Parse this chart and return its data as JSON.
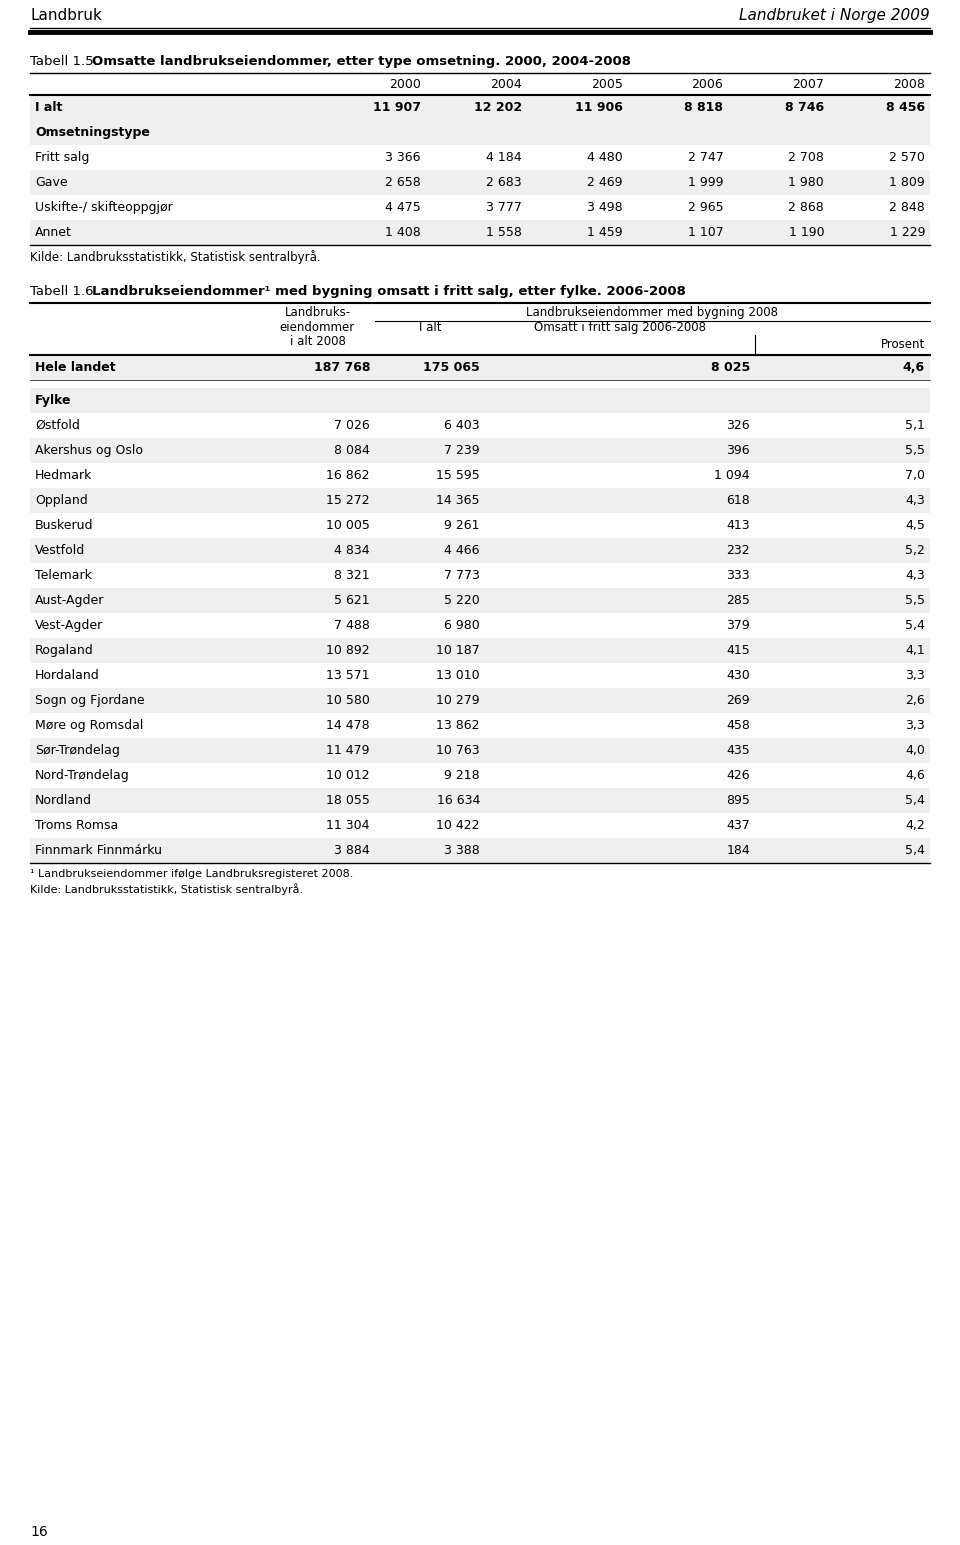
{
  "header_left": "Landbruk",
  "header_right": "Landbruket i Norge 2009",
  "page_number": "16",
  "table1": {
    "title_plain": "Tabell 1.5.",
    "title_bold": "Omsatte landbrukseiendommer, etter type omsetning. 2000, 2004-2008",
    "years": [
      "2000",
      "2004",
      "2005",
      "2006",
      "2007",
      "2008"
    ],
    "rows": [
      {
        "label": "I alt",
        "bold": true,
        "shaded": true,
        "values": [
          "11 907",
          "12 202",
          "11 906",
          "8 818",
          "8 746",
          "8 456"
        ]
      },
      {
        "label": "Omsetningstype",
        "bold": true,
        "shaded": true,
        "values": [
          null,
          null,
          null,
          null,
          null,
          null
        ]
      },
      {
        "label": "Fritt salg",
        "bold": false,
        "shaded": false,
        "values": [
          "3 366",
          "4 184",
          "4 480",
          "2 747",
          "2 708",
          "2 570"
        ]
      },
      {
        "label": "Gave",
        "bold": false,
        "shaded": true,
        "values": [
          "2 658",
          "2 683",
          "2 469",
          "1 999",
          "1 980",
          "1 809"
        ]
      },
      {
        "label": "Uskifte-/ skifteoppgjør",
        "bold": false,
        "shaded": false,
        "values": [
          "4 475",
          "3 777",
          "3 498",
          "2 965",
          "2 868",
          "2 848"
        ]
      },
      {
        "label": "Annet",
        "bold": false,
        "shaded": true,
        "values": [
          "1 408",
          "1 558",
          "1 459",
          "1 107",
          "1 190",
          "1 229"
        ]
      }
    ],
    "source": "Kilde: Landbruksstatistikk, Statistisk sentralbyrå."
  },
  "table2": {
    "title_plain": "Tabell 1.6.",
    "title_bold": "Landbrukseiendommer¹ med bygning omsatt i fritt salg, etter fylke. 2006-2008",
    "col_header1_line1": "Landbruks-",
    "col_header1_line2": "eiendommer",
    "col_header1_line3": "i alt 2008",
    "col_header2": "Landbrukseiendommer med bygning 2008",
    "col_header2a": "I alt",
    "col_header2b": "Omsatt i fritt salg 2006-2008",
    "col_header2c": "Prosent",
    "hele_landet": {
      "label": "Hele landet",
      "bold": true,
      "shaded": true,
      "values": [
        "187 768",
        "175 065",
        "8 025",
        "4,6"
      ]
    },
    "fylke_header": {
      "label": "Fylke",
      "bold": true,
      "shaded": true
    },
    "fylker": [
      {
        "label": "Østfold",
        "shaded": false,
        "values": [
          "7 026",
          "6 403",
          "326",
          "5,1"
        ]
      },
      {
        "label": "Akershus og Oslo",
        "shaded": true,
        "values": [
          "8 084",
          "7 239",
          "396",
          "5,5"
        ]
      },
      {
        "label": "Hedmark",
        "shaded": false,
        "values": [
          "16 862",
          "15 595",
          "1 094",
          "7,0"
        ]
      },
      {
        "label": "Oppland",
        "shaded": true,
        "values": [
          "15 272",
          "14 365",
          "618",
          "4,3"
        ]
      },
      {
        "label": "Buskerud",
        "shaded": false,
        "values": [
          "10 005",
          "9 261",
          "413",
          "4,5"
        ]
      },
      {
        "label": "Vestfold",
        "shaded": true,
        "values": [
          "4 834",
          "4 466",
          "232",
          "5,2"
        ]
      },
      {
        "label": "Telemark",
        "shaded": false,
        "values": [
          "8 321",
          "7 773",
          "333",
          "4,3"
        ]
      },
      {
        "label": "Aust-Agder",
        "shaded": true,
        "values": [
          "5 621",
          "5 220",
          "285",
          "5,5"
        ]
      },
      {
        "label": "Vest-Agder",
        "shaded": false,
        "values": [
          "7 488",
          "6 980",
          "379",
          "5,4"
        ]
      },
      {
        "label": "Rogaland",
        "shaded": true,
        "values": [
          "10 892",
          "10 187",
          "415",
          "4,1"
        ]
      },
      {
        "label": "Hordaland",
        "shaded": false,
        "values": [
          "13 571",
          "13 010",
          "430",
          "3,3"
        ]
      },
      {
        "label": "Sogn og Fjordane",
        "shaded": true,
        "values": [
          "10 580",
          "10 279",
          "269",
          "2,6"
        ]
      },
      {
        "label": "Møre og Romsdal",
        "shaded": false,
        "values": [
          "14 478",
          "13 862",
          "458",
          "3,3"
        ]
      },
      {
        "label": "Sør-Trøndelag",
        "shaded": true,
        "values": [
          "11 479",
          "10 763",
          "435",
          "4,0"
        ]
      },
      {
        "label": "Nord-Trøndelag",
        "shaded": false,
        "values": [
          "10 012",
          "9 218",
          "426",
          "4,6"
        ]
      },
      {
        "label": "Nordland",
        "shaded": true,
        "values": [
          "18 055",
          "16 634",
          "895",
          "5,4"
        ]
      },
      {
        "label": "Troms Romsa",
        "shaded": false,
        "values": [
          "11 304",
          "10 422",
          "437",
          "4,2"
        ]
      },
      {
        "label": "Finnmark Finnmárku",
        "shaded": true,
        "values": [
          "3 884",
          "3 388",
          "184",
          "5,4"
        ]
      }
    ],
    "footnote": "¹ Landbrukseiendommer ifølge Landbruksregisteret 2008.",
    "source": "Kilde: Landbruksstatistikk, Statistisk sentralbyrå."
  },
  "bg_color": "#ffffff",
  "shaded_color": "#efefef",
  "line_color": "#000000",
  "text_color": "#000000"
}
